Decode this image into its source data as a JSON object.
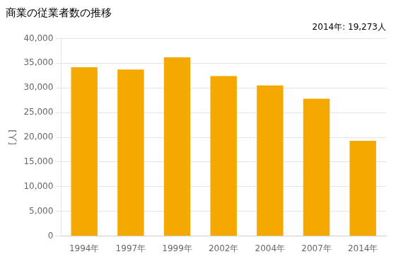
{
  "chart_data": {
    "type": "bar",
    "title": "商業の従業者数の推移",
    "ylabel": "[人]",
    "annotation": "2014年: 19,273人",
    "categories": [
      "1994年",
      "1997年",
      "1999年",
      "2002年",
      "2004年",
      "2007年",
      "2014年"
    ],
    "values": [
      34200,
      33700,
      36200,
      32400,
      30500,
      27800,
      19273
    ],
    "color": "#F5A800",
    "ylim": [
      0,
      40000
    ],
    "yticks": [
      0,
      {
        "value": 5000,
        "label": "5,000"
      },
      {
        "value": 10000,
        "label": "10,000"
      },
      {
        "value": 15000,
        "label": "15,000"
      },
      {
        "value": 20000,
        "label": "20,000"
      },
      {
        "value": 25000,
        "label": "25,000"
      },
      {
        "value": 30000,
        "label": "30,000"
      },
      {
        "value": 35000,
        "label": "35,000"
      },
      {
        "value": 40000,
        "label": "40,000"
      }
    ],
    "grid": true
  }
}
